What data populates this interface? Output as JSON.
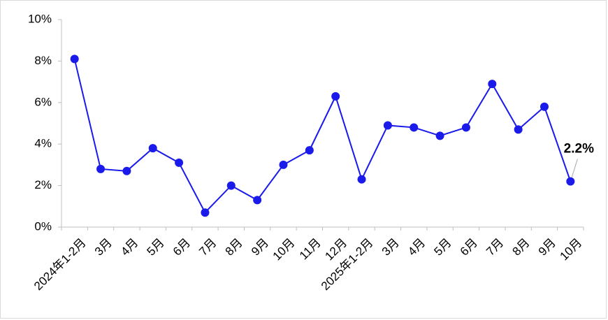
{
  "chart_data": {
    "type": "line",
    "categories": [
      "2024年1-2月",
      "3月",
      "4月",
      "5月",
      "6月",
      "7月",
      "8月",
      "9月",
      "10月",
      "11月",
      "12月",
      "2025年1-2月",
      "3月",
      "4月",
      "5月",
      "6月",
      "7月",
      "8月",
      "9月",
      "10月"
    ],
    "series": [
      {
        "color": "#1a1aeb",
        "values": [
          8.1,
          2.8,
          2.7,
          3.8,
          3.1,
          0.7,
          2.0,
          1.3,
          3.0,
          3.7,
          6.3,
          2.3,
          4.9,
          4.8,
          4.4,
          4.8,
          6.9,
          4.7,
          5.8,
          2.2
        ],
        "value_labels": [
          null,
          null,
          null,
          null,
          null,
          null,
          null,
          null,
          null,
          null,
          null,
          null,
          null,
          null,
          null,
          null,
          null,
          null,
          null,
          "2.2%"
        ]
      }
    ],
    "ylim": [
      0,
      10
    ],
    "yticks": [
      {
        "value": 0,
        "label": "0%"
      },
      {
        "value": 2,
        "label": "2%"
      },
      {
        "value": 4,
        "label": "4%"
      },
      {
        "value": 6,
        "label": "6%"
      },
      {
        "value": 8,
        "label": "8%"
      },
      {
        "value": 10,
        "label": "10%"
      }
    ]
  }
}
